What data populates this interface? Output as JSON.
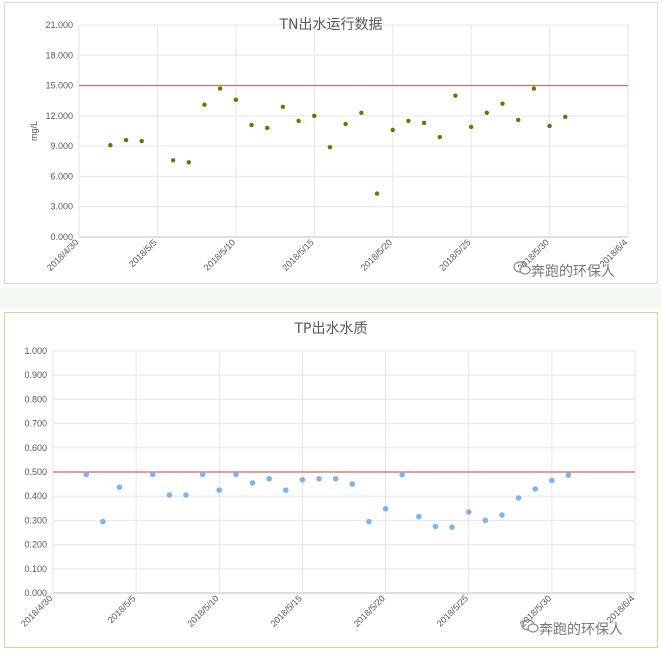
{
  "chart_data": [
    {
      "id": "tn",
      "type": "scatter",
      "title": "TN出水运行数据",
      "ylabel": "mg/L",
      "xlabel": "",
      "ylim": [
        0,
        21
      ],
      "yticks": [
        0,
        3,
        6,
        9,
        12,
        15,
        18,
        21
      ],
      "ytick_labels": [
        "0.000",
        "3.000",
        "6.000",
        "9.000",
        "12.000",
        "15.000",
        "18.000",
        "21.000"
      ],
      "xlim": [
        "2018/4/30",
        "2018/6/4"
      ],
      "xticks": [
        "2018/4/30",
        "2018/5/5",
        "2018/5/10",
        "2018/5/15",
        "2018/5/20",
        "2018/5/25",
        "2018/5/30",
        "2018/6/4"
      ],
      "grid": "vertical",
      "reference_line": {
        "value": 15,
        "color": "#e8615a"
      },
      "marker_color": "#5f7a00",
      "series": [
        {
          "points": [
            [
              "2018/5/2",
              9.1
            ],
            [
              "2018/5/3",
              9.6
            ],
            [
              "2018/5/4",
              9.5
            ],
            [
              "2018/5/6",
              7.6
            ],
            [
              "2018/5/7",
              7.4
            ],
            [
              "2018/5/8",
              13.1
            ],
            [
              "2018/5/9",
              14.7
            ],
            [
              "2018/5/10",
              13.6
            ],
            [
              "2018/5/11",
              11.1
            ],
            [
              "2018/5/12",
              10.8
            ],
            [
              "2018/5/13",
              12.9
            ],
            [
              "2018/5/14",
              11.5
            ],
            [
              "2018/5/15",
              12.0
            ],
            [
              "2018/5/16",
              8.9
            ],
            [
              "2018/5/17",
              11.2
            ],
            [
              "2018/5/18",
              12.3
            ],
            [
              "2018/5/19",
              4.3
            ],
            [
              "2018/5/20",
              10.6
            ],
            [
              "2018/5/21",
              11.5
            ],
            [
              "2018/5/22",
              11.3
            ],
            [
              "2018/5/23",
              9.9
            ],
            [
              "2018/5/24",
              14.0
            ],
            [
              "2018/5/25",
              10.9
            ],
            [
              "2018/5/26",
              12.3
            ],
            [
              "2018/5/27",
              13.2
            ],
            [
              "2018/5/28",
              11.6
            ],
            [
              "2018/5/29",
              14.7
            ],
            [
              "2018/5/30",
              11.0
            ],
            [
              "2018/5/31",
              11.9
            ]
          ]
        }
      ]
    },
    {
      "id": "tp",
      "type": "scatter",
      "title": "TP出水水质",
      "ylabel": "",
      "xlabel": "",
      "ylim": [
        0,
        1
      ],
      "yticks": [
        0,
        0.1,
        0.2,
        0.3,
        0.4,
        0.5,
        0.6,
        0.7,
        0.8,
        0.9,
        1.0
      ],
      "ytick_labels": [
        "0.000",
        "0.100",
        "0.200",
        "0.300",
        "0.400",
        "0.500",
        "0.600",
        "0.700",
        "0.800",
        "0.900",
        "1.000"
      ],
      "xlim": [
        "2018/4/30",
        "2018/6/4"
      ],
      "xticks": [
        "2018/4/30",
        "2018/5/5",
        "2018/5/10",
        "2018/5/15",
        "2018/5/20",
        "2018/5/25",
        "2018/5/30",
        "2018/6/4"
      ],
      "grid": "both",
      "reference_line": {
        "value": 0.5,
        "color": "#e8615a"
      },
      "marker_color": "#7eb4e8",
      "series": [
        {
          "points": [
            [
              "2018/5/2",
              0.49
            ],
            [
              "2018/5/3",
              0.295
            ],
            [
              "2018/5/4",
              0.437
            ],
            [
              "2018/5/6",
              0.49
            ],
            [
              "2018/5/7",
              0.405
            ],
            [
              "2018/5/8",
              0.405
            ],
            [
              "2018/5/9",
              0.49
            ],
            [
              "2018/5/10",
              0.425
            ],
            [
              "2018/5/11",
              0.49
            ],
            [
              "2018/5/12",
              0.455
            ],
            [
              "2018/5/13",
              0.472
            ],
            [
              "2018/5/14",
              0.425
            ],
            [
              "2018/5/15",
              0.468
            ],
            [
              "2018/5/16",
              0.472
            ],
            [
              "2018/5/17",
              0.472
            ],
            [
              "2018/5/18",
              0.45
            ],
            [
              "2018/5/19",
              0.295
            ],
            [
              "2018/5/20",
              0.348
            ],
            [
              "2018/5/21",
              0.49
            ],
            [
              "2018/5/22",
              0.316
            ],
            [
              "2018/5/23",
              0.275
            ],
            [
              "2018/5/24",
              0.272
            ],
            [
              "2018/5/25",
              0.335
            ],
            [
              "2018/5/26",
              0.3
            ],
            [
              "2018/5/27",
              0.322
            ],
            [
              "2018/5/28",
              0.393
            ],
            [
              "2018/5/29",
              0.43
            ],
            [
              "2018/5/30",
              0.465
            ],
            [
              "2018/5/31",
              0.487
            ]
          ]
        }
      ]
    }
  ],
  "watermark": {
    "text": "奔跑的环保人",
    "icon": "wechat-icon"
  }
}
